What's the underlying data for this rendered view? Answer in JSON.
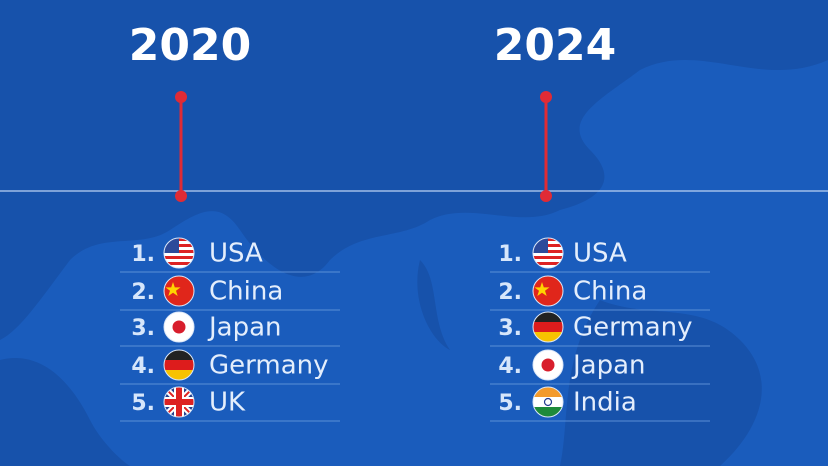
{
  "columns": [
    {
      "year": "2020",
      "rankings": [
        {
          "rank": "1.",
          "country": "USA"
        },
        {
          "rank": "2.",
          "country": "China"
        },
        {
          "rank": "3.",
          "country": "Japan"
        },
        {
          "rank": "4.",
          "country": "Germany"
        },
        {
          "rank": "5.",
          "country": "UK"
        }
      ]
    },
    {
      "year": "2024",
      "rankings": [
        {
          "rank": "1.",
          "country": "USA"
        },
        {
          "rank": "2.",
          "country": "China"
        },
        {
          "rank": "3.",
          "country": "Germany"
        },
        {
          "rank": "4.",
          "country": "Japan"
        },
        {
          "rank": "5.",
          "country": "India"
        }
      ]
    }
  ]
}
